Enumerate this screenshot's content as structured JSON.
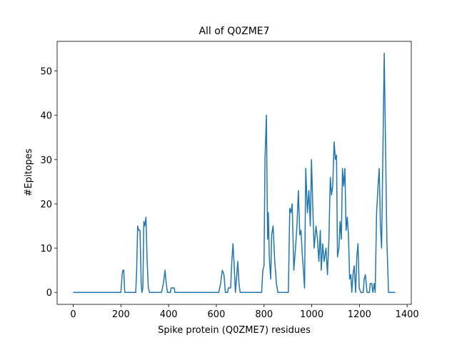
{
  "chart_data": {
    "type": "line",
    "title": "All of Q0ZME7",
    "x_label": "Spike protein (Q0ZME7) residues",
    "y_label": "#Epitopes",
    "color": "#1f77b4",
    "x": [
      0,
      200,
      205,
      208,
      212,
      216,
      262,
      266,
      270,
      275,
      280,
      285,
      288,
      292,
      296,
      300,
      305,
      310,
      315,
      320,
      370,
      378,
      385,
      390,
      395,
      408,
      410,
      424,
      426,
      610,
      618,
      625,
      632,
      638,
      648,
      650,
      660,
      665,
      670,
      675,
      680,
      686,
      690,
      695,
      700,
      790,
      795,
      800,
      804,
      810,
      815,
      818,
      822,
      828,
      832,
      838,
      845,
      852,
      858,
      902,
      908,
      913,
      918,
      925,
      932,
      938,
      944,
      950,
      955,
      960,
      965,
      970,
      975,
      982,
      988,
      994,
      999,
      1004,
      1010,
      1018,
      1024,
      1030,
      1036,
      1040,
      1046,
      1052,
      1060,
      1066,
      1072,
      1078,
      1083,
      1088,
      1094,
      1099,
      1104,
      1108,
      1114,
      1119,
      1124,
      1129,
      1134,
      1139,
      1144,
      1149,
      1154,
      1159,
      1164,
      1168,
      1173,
      1178,
      1184,
      1189,
      1194,
      1199,
      1206,
      1216,
      1220,
      1225,
      1232,
      1242,
      1245,
      1252,
      1256,
      1262,
      1266,
      1272,
      1278,
      1283,
      1288,
      1293,
      1298,
      1304,
      1309,
      1315,
      1322,
      1350
    ],
    "values": [
      0,
      0,
      4,
      5,
      5,
      0,
      0,
      5,
      15,
      14,
      14,
      2,
      0,
      1,
      16,
      15,
      17,
      7,
      1,
      0,
      0,
      2,
      5,
      2,
      0,
      0,
      1,
      1,
      0,
      0,
      2,
      5,
      4,
      0,
      0,
      1,
      1,
      7,
      11,
      6,
      0,
      4,
      7,
      2,
      0,
      0,
      5,
      6,
      30,
      40,
      12,
      18,
      8,
      3,
      13,
      15,
      7,
      2,
      0,
      0,
      19,
      18,
      20,
      5,
      10,
      15,
      23,
      13,
      14,
      9,
      5,
      1,
      28,
      18,
      23,
      15,
      30,
      20,
      10,
      15,
      12,
      7,
      14,
      5,
      11,
      7,
      10,
      4,
      12,
      26,
      22,
      24,
      34,
      30,
      31,
      8,
      10,
      16,
      12,
      28,
      24,
      28,
      14,
      17,
      13,
      3,
      4,
      0,
      4,
      6,
      0,
      8,
      11,
      1,
      0,
      0,
      3,
      4,
      0,
      0,
      2,
      2,
      0,
      2,
      0,
      18,
      24,
      28,
      15,
      10,
      30,
      54,
      35,
      12,
      0,
      0
    ],
    "xlim": [
      -67.5,
      1417.5
    ],
    "ylim": [
      -2.7,
      56.7
    ],
    "xticks": [
      0,
      200,
      400,
      600,
      800,
      1000,
      1200,
      1400
    ],
    "yticks": [
      0,
      10,
      20,
      30,
      40,
      50
    ]
  }
}
